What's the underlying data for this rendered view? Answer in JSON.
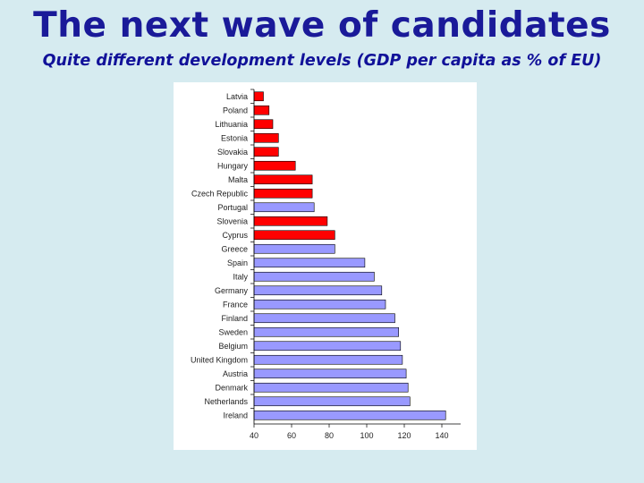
{
  "slide": {
    "title": "The next wave of candidates",
    "subtitle": "Quite different development levels (GDP per capita as % of EU)"
  },
  "colors": {
    "candidate": "#ff0000",
    "member": "#9999ff",
    "background": "#d6ebf0",
    "title": "#1a1a99"
  },
  "chart_data": {
    "type": "bar",
    "orientation": "horizontal",
    "categories": [
      "Latvia",
      "Poland",
      "Lithuania",
      "Estonia",
      "Slovakia",
      "Hungary",
      "Malta",
      "Czech Republic",
      "Portugal",
      "Slovenia",
      "Cyprus",
      "Greece",
      "Spain",
      "Italy",
      "Germany",
      "France",
      "Finland",
      "Sweden",
      "Belgium",
      "United Kingdom",
      "Austria",
      "Denmark",
      "Netherlands",
      "Ireland"
    ],
    "values": [
      45,
      48,
      50,
      53,
      53,
      62,
      71,
      71,
      72,
      79,
      83,
      83,
      99,
      104,
      108,
      110,
      115,
      117,
      118,
      119,
      121,
      122,
      123,
      142
    ],
    "groups": [
      "candidate",
      "candidate",
      "candidate",
      "candidate",
      "candidate",
      "candidate",
      "candidate",
      "candidate",
      "member",
      "candidate",
      "candidate",
      "member",
      "member",
      "member",
      "member",
      "member",
      "member",
      "member",
      "member",
      "member",
      "member",
      "member",
      "member",
      "member"
    ],
    "xticks": [
      40,
      60,
      80,
      100,
      120,
      140
    ],
    "xlim": [
      40,
      150
    ],
    "grid": false,
    "legend": "none"
  }
}
